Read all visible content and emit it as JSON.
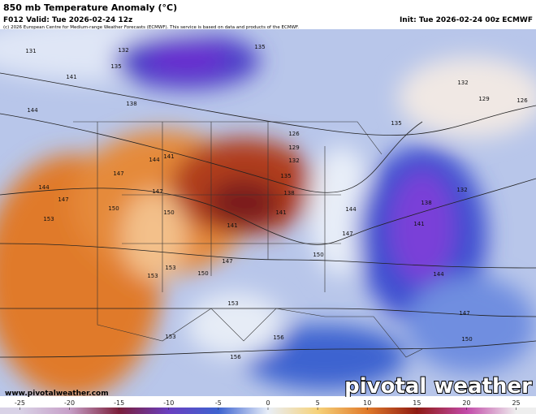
{
  "header": {
    "title": "850 mb Temperature Anomaly (°C)",
    "valid": "F012 Valid: Tue 2026-02-24 12z",
    "init": "Init: Tue 2026-02-24 00z ECMWF",
    "copyright": "(c) 2026 European Centre for Medium-range Weather Forecasts (ECMWF). This service is based on data and products of the ECMWF."
  },
  "map": {
    "contour_labels": [
      131,
      132,
      135,
      141,
      138,
      144,
      135,
      132,
      129,
      126,
      126,
      129,
      132,
      135,
      141,
      144,
      147,
      144,
      147,
      150,
      153,
      147,
      135,
      138,
      141,
      141,
      150,
      144,
      147,
      150,
      147,
      153,
      153,
      150,
      138,
      141,
      132,
      144,
      147,
      150,
      153,
      153,
      156,
      156
    ],
    "website": "www.pivotalweather.com",
    "brand": "pivotal weather"
  },
  "colorbar": {
    "ticks": [
      -25,
      -20,
      -15,
      -10,
      -5,
      0,
      5,
      10,
      15,
      20,
      25
    ],
    "lim": [
      -27,
      27
    ],
    "colors": [
      "#d9d2e6",
      "#c7a0c8",
      "#7a1e3a",
      "#6a3fc0",
      "#3d63d0",
      "#e8eef8",
      "#f6d27a",
      "#e07a2a",
      "#8e1a12",
      "#c24aa8",
      "#eeeeee"
    ]
  }
}
